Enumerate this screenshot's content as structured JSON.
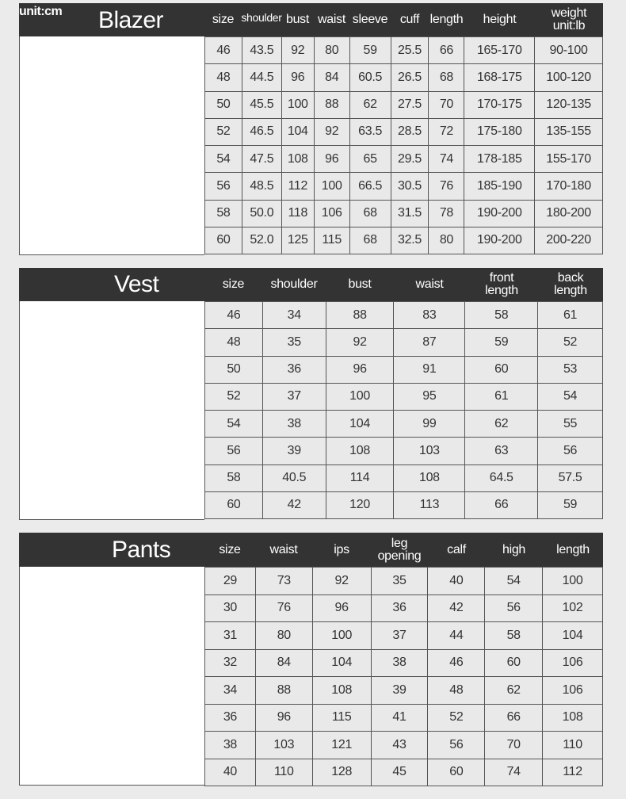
{
  "blazer": {
    "unit": "unit:cm",
    "title": "Blazer",
    "headers": [
      "size",
      "shoulder",
      "bust",
      "waist",
      "sleeve",
      "cuff",
      "length",
      "height",
      "weight\nunit:lb"
    ],
    "rows": [
      [
        "46",
        "43.5",
        "92",
        "80",
        "59",
        "25.5",
        "66",
        "165-170",
        "90-100"
      ],
      [
        "48",
        "44.5",
        "96",
        "84",
        "60.5",
        "26.5",
        "68",
        "168-175",
        "100-120"
      ],
      [
        "50",
        "45.5",
        "100",
        "88",
        "62",
        "27.5",
        "70",
        "170-175",
        "120-135"
      ],
      [
        "52",
        "46.5",
        "104",
        "92",
        "63.5",
        "28.5",
        "72",
        "175-180",
        "135-155"
      ],
      [
        "54",
        "47.5",
        "108",
        "96",
        "65",
        "29.5",
        "74",
        "178-185",
        "155-170"
      ],
      [
        "56",
        "48.5",
        "112",
        "100",
        "66.5",
        "30.5",
        "76",
        "185-190",
        "170-180"
      ],
      [
        "58",
        "50.0",
        "118",
        "106",
        "68",
        "31.5",
        "78",
        "190-200",
        "180-200"
      ],
      [
        "60",
        "52.0",
        "125",
        "115",
        "68",
        "32.5",
        "80",
        "190-200",
        "200-220"
      ]
    ]
  },
  "vest": {
    "title": "Vest",
    "headers": [
      "size",
      "shoulder",
      "bust",
      "waist",
      "front\nlength",
      "back\nlength"
    ],
    "rows": [
      [
        "46",
        "34",
        "88",
        "83",
        "58",
        "61"
      ],
      [
        "48",
        "35",
        "92",
        "87",
        "59",
        "52"
      ],
      [
        "50",
        "36",
        "96",
        "91",
        "60",
        "53"
      ],
      [
        "52",
        "37",
        "100",
        "95",
        "61",
        "54"
      ],
      [
        "54",
        "38",
        "104",
        "99",
        "62",
        "55"
      ],
      [
        "56",
        "39",
        "108",
        "103",
        "63",
        "56"
      ],
      [
        "58",
        "40.5",
        "114",
        "108",
        "64.5",
        "57.5"
      ],
      [
        "60",
        "42",
        "120",
        "113",
        "66",
        "59"
      ]
    ]
  },
  "pants": {
    "title": "Pants",
    "headers": [
      "size",
      "waist",
      "ips",
      "leg\nopening",
      "calf",
      "high",
      "length"
    ],
    "rows": [
      [
        "29",
        "73",
        "92",
        "35",
        "40",
        "54",
        "100"
      ],
      [
        "30",
        "76",
        "96",
        "36",
        "42",
        "56",
        "102"
      ],
      [
        "31",
        "80",
        "100",
        "37",
        "44",
        "58",
        "104"
      ],
      [
        "32",
        "84",
        "104",
        "38",
        "46",
        "60",
        "106"
      ],
      [
        "34",
        "88",
        "108",
        "39",
        "48",
        "62",
        "106"
      ],
      [
        "36",
        "96",
        "115",
        "41",
        "52",
        "66",
        "108"
      ],
      [
        "38",
        "103",
        "121",
        "43",
        "56",
        "70",
        "110"
      ],
      [
        "40",
        "110",
        "128",
        "45",
        "60",
        "74",
        "112"
      ]
    ]
  },
  "colors": {
    "header_bg": "#333333",
    "cell_bg": "#e9e9e9",
    "page_bg": "#ebebeb"
  }
}
